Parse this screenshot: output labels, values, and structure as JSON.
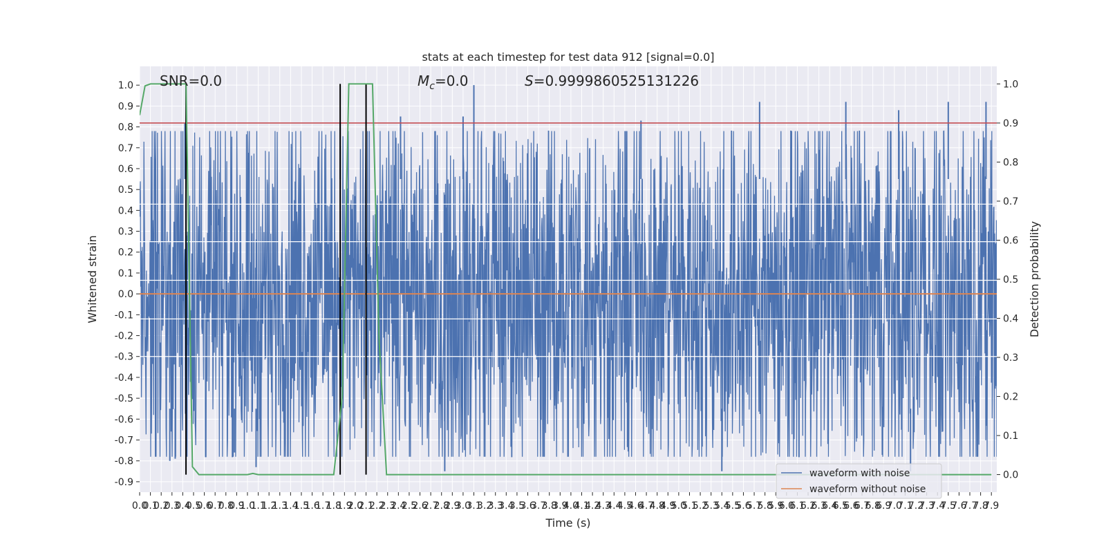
{
  "chart_data": {
    "type": "line",
    "title": "stats at each timestep for test data 912 [signal=0.0]",
    "xlabel": "Time (s)",
    "ylabel": "Whitened strain",
    "y2label": "Detection probability",
    "annotations": {
      "snr": "SNR=0.0",
      "mc_symbol": "M",
      "mc_sub": "c",
      "mc_value": "=0.0",
      "s_symbol": "S",
      "s_value": "=0.9999860525131226"
    },
    "xlim": [
      0.0,
      7.95
    ],
    "ylim": [
      -0.95,
      1.09
    ],
    "y2lim": [
      -0.045,
      1.045
    ],
    "xticks": [
      0.0,
      0.1,
      0.2,
      0.3,
      0.4,
      0.5,
      0.6,
      0.7,
      0.8,
      0.9,
      1.0,
      1.1,
      1.2,
      1.3,
      1.4,
      1.5,
      1.6,
      1.7,
      1.8,
      1.9,
      2.0,
      2.1,
      2.2,
      2.3,
      2.4,
      2.5,
      2.6,
      2.7,
      2.8,
      2.9,
      3.0,
      3.1,
      3.2,
      3.3,
      3.4,
      3.5,
      3.6,
      3.7,
      3.8,
      3.9,
      4.0,
      4.1,
      4.2,
      4.3,
      4.4,
      4.5,
      4.6,
      4.7,
      4.8,
      4.9,
      5.0,
      5.1,
      5.2,
      5.3,
      5.4,
      5.5,
      5.6,
      5.7,
      5.8,
      5.9,
      6.0,
      6.1,
      6.2,
      6.3,
      6.4,
      6.5,
      6.6,
      6.7,
      6.8,
      6.9,
      7.0,
      7.1,
      7.2,
      7.3,
      7.4,
      7.5,
      7.6,
      7.7,
      7.8,
      7.9
    ],
    "xtick_labels": [
      "0.0",
      "0.1",
      "0.2",
      "0.3",
      "0.4",
      "0.5",
      "0.6",
      "0.7",
      "0.8",
      "0.9",
      "1.0",
      "1.1",
      "1.2",
      "1.3",
      "1.4",
      "1.5",
      "1.6",
      "1.7",
      "1.8",
      "1.9",
      "2.0",
      "2.1",
      "2.2",
      "2.3",
      "2.4",
      "2.5",
      "2.6",
      "2.7",
      "2.8",
      "2.9",
      "3.0",
      "3.1",
      "3.2",
      "3.3",
      "3.4",
      "3.5",
      "3.6",
      "3.7",
      "3.8",
      "3.9",
      "4.0",
      "4.1",
      "4.2",
      "4.3",
      "4.4",
      "4.5",
      "4.6",
      "4.7",
      "4.8",
      "4.9",
      "5.0",
      "5.1",
      "5.2",
      "5.3",
      "5.4",
      "5.5",
      "5.6",
      "5.7",
      "5.8",
      "5.9",
      "6.0",
      "6.1",
      "6.2",
      "6.3",
      "6.4",
      "6.5",
      "6.6",
      "6.7",
      "6.8",
      "6.9",
      "7.0",
      "7.1",
      "7.2",
      "7.3",
      "7.4",
      "7.5",
      "7.6",
      "7.7",
      "7.8",
      "7.9"
    ],
    "yticks": [
      -0.9,
      -0.8,
      -0.7,
      -0.6,
      -0.5,
      -0.4,
      -0.3,
      -0.2,
      -0.1,
      0.0,
      0.1,
      0.2,
      0.3,
      0.4,
      0.5,
      0.6,
      0.7,
      0.8,
      0.9,
      1.0
    ],
    "ytick_labels": [
      "-0.9",
      "-0.8",
      "-0.7",
      "-0.6",
      "-0.5",
      "-0.4",
      "-0.3",
      "-0.2",
      "-0.1",
      "0.0",
      "0.1",
      "0.2",
      "0.3",
      "0.4",
      "0.5",
      "0.6",
      "0.7",
      "0.8",
      "0.9",
      "1.0"
    ],
    "y2ticks": [
      0.0,
      0.1,
      0.2,
      0.3,
      0.4,
      0.5,
      0.6,
      0.7,
      0.8,
      0.9,
      1.0
    ],
    "y2tick_labels": [
      "0.0",
      "0.1",
      "0.2",
      "0.3",
      "0.4",
      "0.5",
      "0.6",
      "0.7",
      "0.8",
      "0.9",
      "1.0"
    ],
    "series": [
      {
        "name": "waveform with noise",
        "color": "#4c72b0",
        "kind": "dense noisy trace, amplitude envelope roughly -0.6 to 0.6",
        "peaks": [
          {
            "x": 0.42,
            "y": 0.82
          },
          {
            "x": 1.86,
            "y": 0.82
          },
          {
            "x": 2.42,
            "y": 0.85
          },
          {
            "x": 3.0,
            "y": 0.85
          },
          {
            "x": 3.1,
            "y": 1.0
          },
          {
            "x": 4.65,
            "y": 0.83
          },
          {
            "x": 5.75,
            "y": 0.92
          },
          {
            "x": 6.55,
            "y": 0.92
          },
          {
            "x": 7.04,
            "y": 0.88
          },
          {
            "x": 7.5,
            "y": 0.92
          },
          {
            "x": 7.85,
            "y": 0.92
          }
        ],
        "troughs": [
          {
            "x": 0.28,
            "y": -0.8
          },
          {
            "x": 0.33,
            "y": -0.79
          },
          {
            "x": 0.88,
            "y": -0.76
          },
          {
            "x": 1.08,
            "y": -0.83
          },
          {
            "x": 2.83,
            "y": -0.85
          },
          {
            "x": 5.4,
            "y": -0.85
          },
          {
            "x": 7.15,
            "y": -0.85
          }
        ]
      },
      {
        "name": "waveform without noise",
        "color": "#dd8452",
        "x": [
          0.0,
          7.95
        ],
        "y": [
          0.0,
          0.0
        ]
      }
    ],
    "detection_probability": {
      "color": "#55a868",
      "x": [
        0.0,
        0.05,
        0.1,
        0.2,
        0.3,
        0.43,
        0.49,
        0.55,
        0.6,
        0.8,
        1.0,
        1.05,
        1.1,
        1.2,
        1.5,
        1.8,
        1.88,
        1.94,
        2.0,
        2.1,
        2.16,
        2.22,
        2.29,
        2.4,
        3.0,
        4.0,
        5.0,
        6.0,
        7.0,
        7.9
      ],
      "y": [
        0.92,
        0.995,
        1.0,
        1.0,
        1.0,
        1.0,
        0.02,
        0.0,
        0.0,
        0.0,
        0.0,
        0.003,
        0.0,
        0.0,
        0.0,
        0.0,
        0.2,
        1.0,
        1.0,
        1.0,
        1.0,
        0.35,
        0.0,
        0.0,
        0.0,
        0.0,
        0.0,
        0.0,
        0.0,
        0.0
      ]
    },
    "threshold": {
      "color": "#c44e52",
      "y2": 0.9
    },
    "vertical_markers": {
      "color": "#000000",
      "x": [
        0.43,
        1.86,
        2.1
      ],
      "y2": [
        0.0,
        1.0
      ]
    },
    "legend": {
      "placement": "lower-right"
    },
    "grid": true
  }
}
